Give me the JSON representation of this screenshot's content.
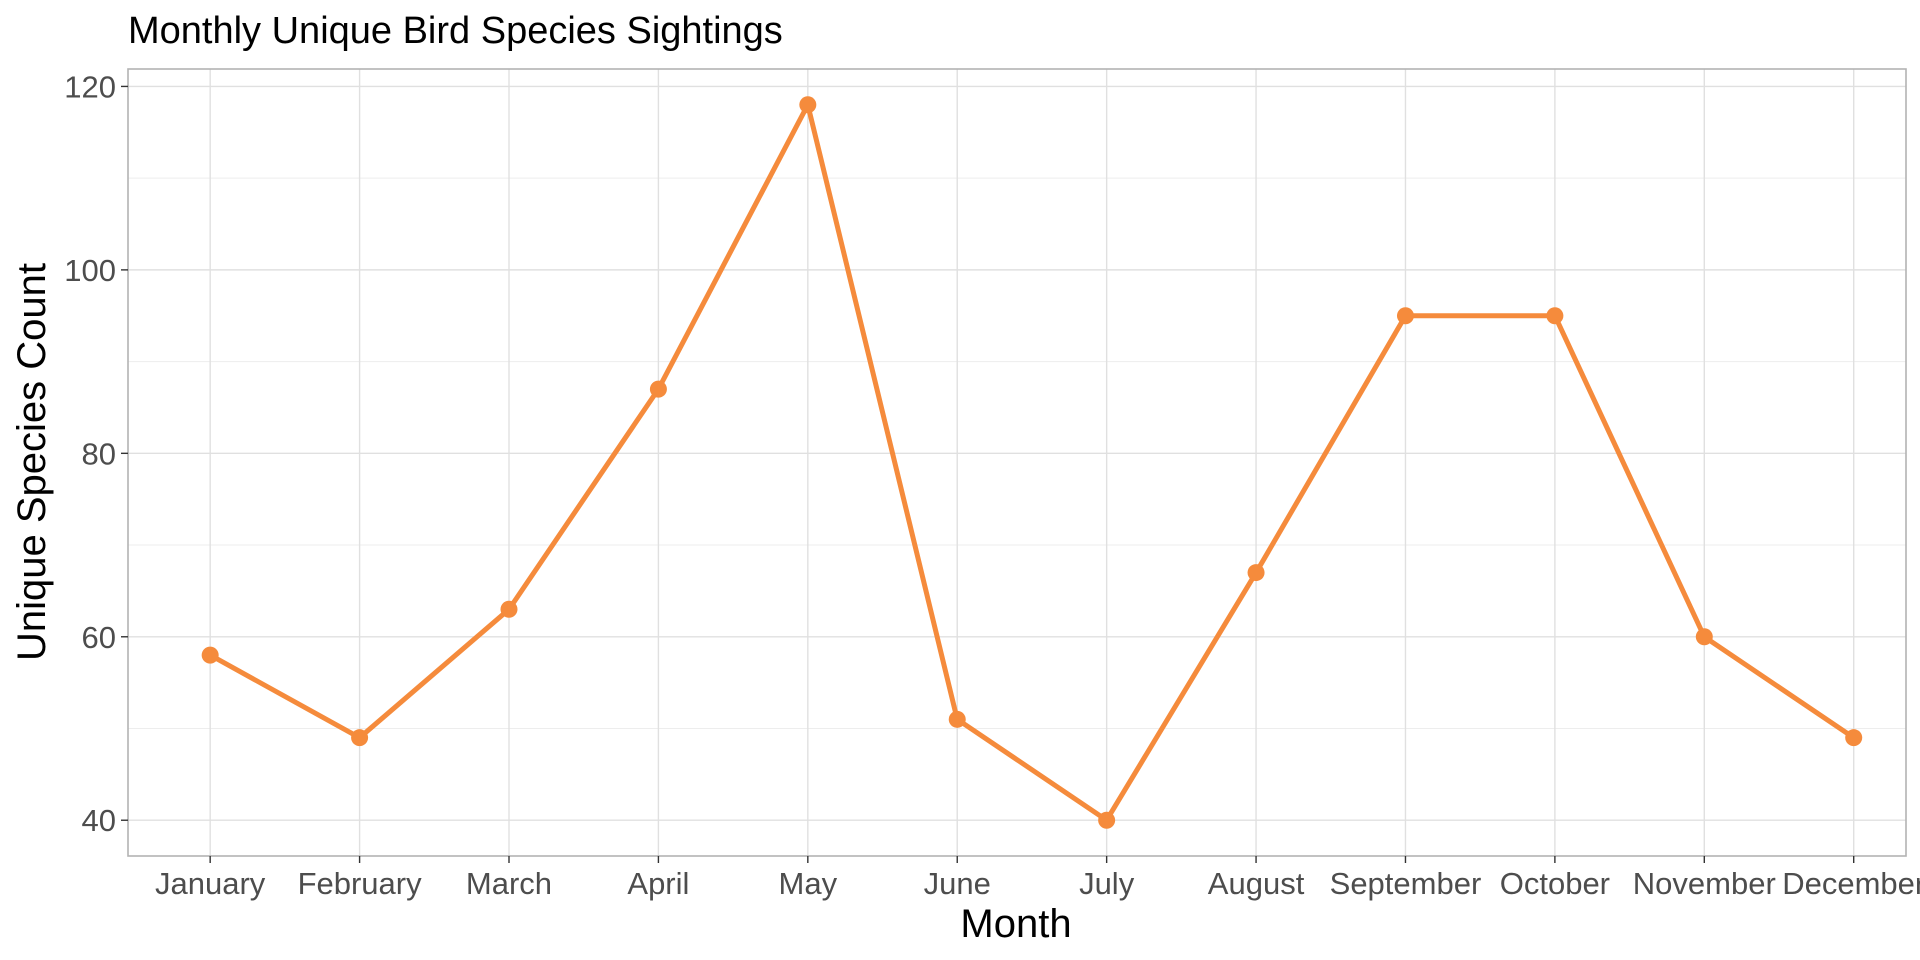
{
  "chart_data": {
    "type": "line",
    "title": "Monthly Unique Bird Species Sightings",
    "xlabel": "Month",
    "ylabel": "Unique Species Count",
    "categories": [
      "January",
      "February",
      "March",
      "April",
      "May",
      "June",
      "July",
      "August",
      "September",
      "October",
      "November",
      "December"
    ],
    "series": [
      {
        "values": [
          58,
          49,
          63,
          87,
          118,
          51,
          40,
          67,
          95,
          95,
          60,
          49
        ]
      }
    ],
    "ylim": [
      36.1,
      121.9
    ],
    "yticks": [
      40,
      60,
      80,
      100,
      120
    ],
    "ytick_labels": [
      "40",
      "60",
      "80",
      "100",
      "120"
    ],
    "grid": true,
    "legend": "none",
    "line_color": "#f58b3c",
    "point_color": "#f58b3c"
  }
}
